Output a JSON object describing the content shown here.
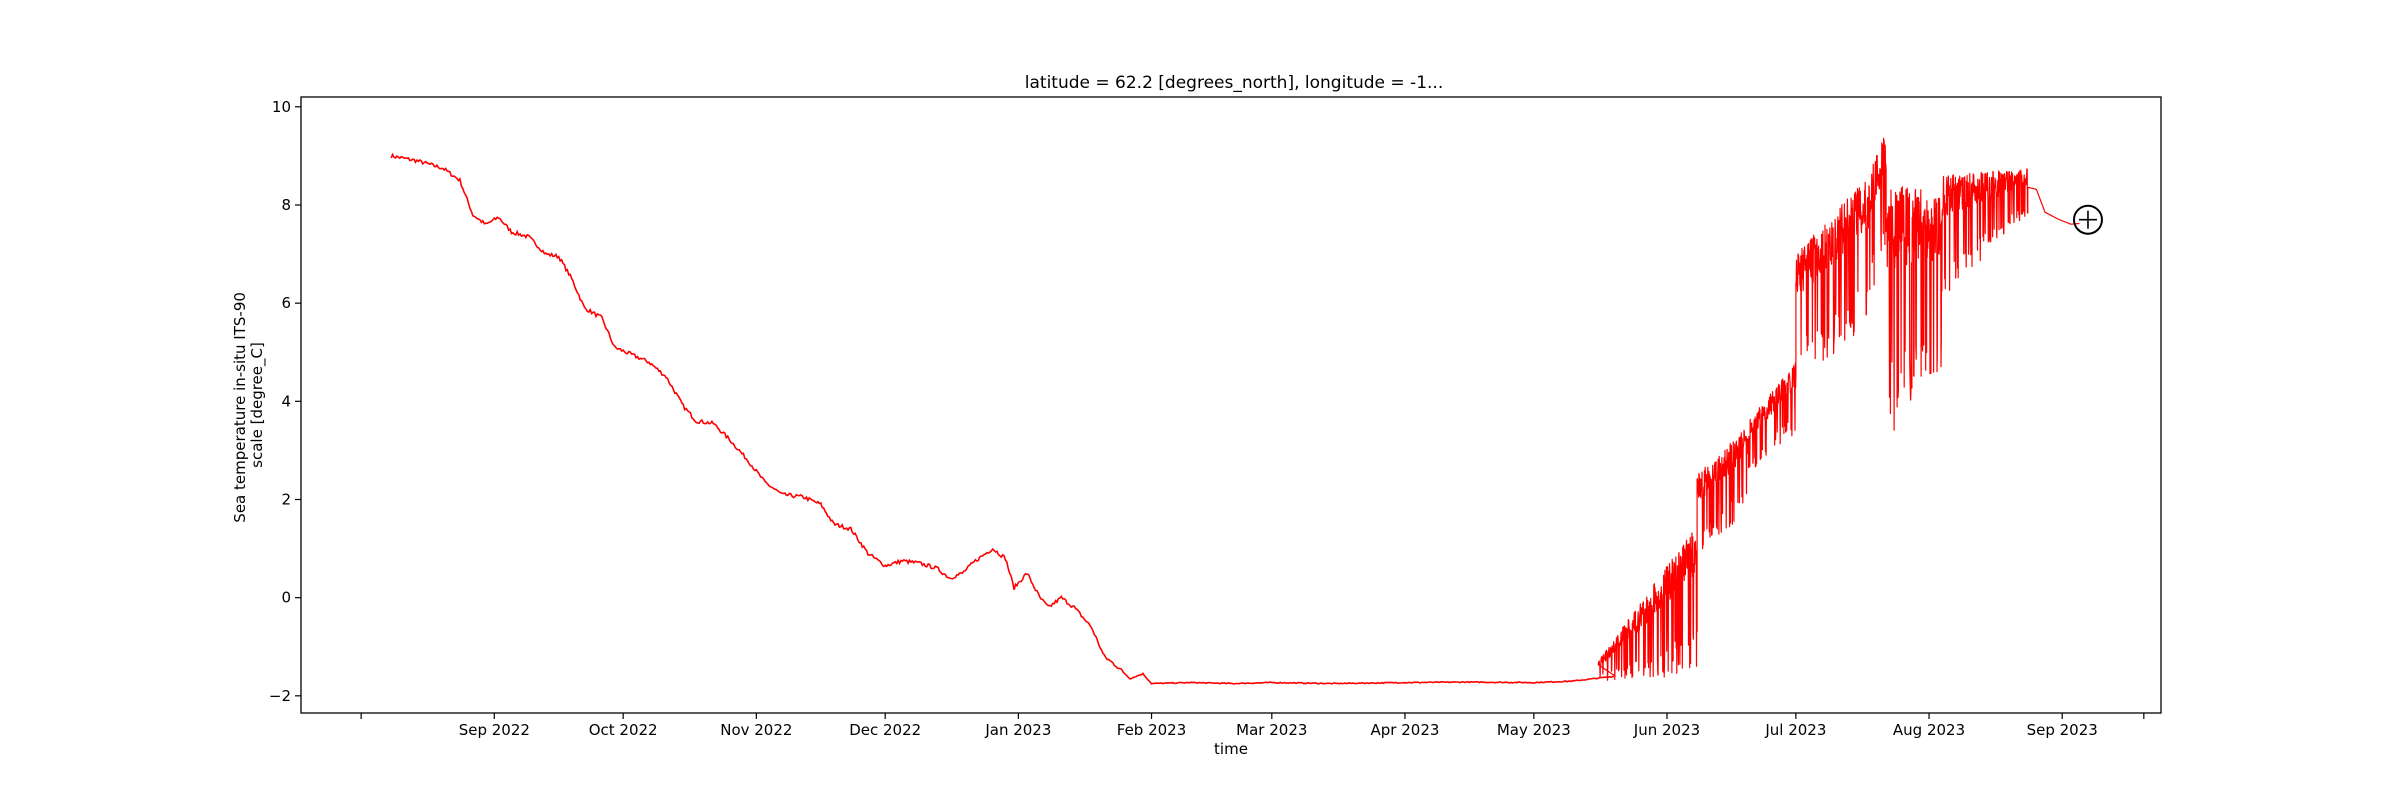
{
  "chart_data": {
    "type": "line",
    "title": "latitude = 62.2 [degrees_north], longitude = -1...",
    "xlabel": "time",
    "ylabel_lines": [
      "Sea temperature in-situ ITS-90",
      "scale [degree_C]"
    ],
    "xlim": [
      "2022-07-18",
      "2023-09-24"
    ],
    "ylim": [
      -2.35,
      10.2
    ],
    "x_ticks": [
      {
        "date": "2022-08-01",
        "label": ""
      },
      {
        "date": "2022-09-01",
        "label": "Sep 2022"
      },
      {
        "date": "2022-10-01",
        "label": "Oct 2022"
      },
      {
        "date": "2022-11-01",
        "label": "Nov 2022"
      },
      {
        "date": "2022-12-01",
        "label": "Dec 2022"
      },
      {
        "date": "2023-01-01",
        "label": "Jan 2023"
      },
      {
        "date": "2023-02-01",
        "label": "Feb 2023"
      },
      {
        "date": "2023-03-01",
        "label": "Mar 2023"
      },
      {
        "date": "2023-04-01",
        "label": "Apr 2023"
      },
      {
        "date": "2023-05-01",
        "label": "May 2023"
      },
      {
        "date": "2023-06-01",
        "label": "Jun 2023"
      },
      {
        "date": "2023-07-01",
        "label": "Jul 2023"
      },
      {
        "date": "2023-08-01",
        "label": "Aug 2023"
      },
      {
        "date": "2023-09-01",
        "label": "Sep 2023"
      },
      {
        "date": "2023-09-20",
        "label": ""
      }
    ],
    "y_ticks": [
      -2,
      0,
      2,
      4,
      6,
      8,
      10
    ],
    "series": [
      {
        "color": "#ff0000",
        "points": [
          [
            "2022-08-08",
            9.0
          ],
          [
            "2022-08-14",
            8.9
          ],
          [
            "2022-08-20",
            8.75
          ],
          [
            "2022-08-24",
            8.5
          ],
          [
            "2022-08-27",
            7.8
          ],
          [
            "2022-08-30",
            7.6
          ],
          [
            "2022-09-02",
            7.75
          ],
          [
            "2022-09-05",
            7.45
          ],
          [
            "2022-09-09",
            7.35
          ],
          [
            "2022-09-13",
            7.0
          ],
          [
            "2022-09-16",
            6.95
          ],
          [
            "2022-09-19",
            6.5
          ],
          [
            "2022-09-22",
            5.9
          ],
          [
            "2022-09-26",
            5.7
          ],
          [
            "2022-09-29",
            5.1
          ],
          [
            "2022-10-03",
            4.95
          ],
          [
            "2022-10-07",
            4.8
          ],
          [
            "2022-10-11",
            4.5
          ],
          [
            "2022-10-15",
            3.9
          ],
          [
            "2022-10-18",
            3.6
          ],
          [
            "2022-10-22",
            3.55
          ],
          [
            "2022-10-26",
            3.2
          ],
          [
            "2022-10-30",
            2.8
          ],
          [
            "2022-11-03",
            2.35
          ],
          [
            "2022-11-07",
            2.1
          ],
          [
            "2022-11-12",
            2.05
          ],
          [
            "2022-11-16",
            1.9
          ],
          [
            "2022-11-19",
            1.5
          ],
          [
            "2022-11-23",
            1.4
          ],
          [
            "2022-11-27",
            0.9
          ],
          [
            "2022-12-01",
            0.65
          ],
          [
            "2022-12-05",
            0.75
          ],
          [
            "2022-12-09",
            0.7
          ],
          [
            "2022-12-13",
            0.6
          ],
          [
            "2022-12-16",
            0.4
          ],
          [
            "2022-12-19",
            0.5
          ],
          [
            "2022-12-22",
            0.75
          ],
          [
            "2022-12-26",
            1.0
          ],
          [
            "2022-12-29",
            0.8
          ],
          [
            "2022-12-31",
            0.2
          ],
          [
            "2023-01-03",
            0.5
          ],
          [
            "2023-01-06",
            0.0
          ],
          [
            "2023-01-08",
            -0.2
          ],
          [
            "2023-01-11",
            0.0
          ],
          [
            "2023-01-14",
            -0.2
          ],
          [
            "2023-01-18",
            -0.6
          ],
          [
            "2023-01-21",
            -1.2
          ],
          [
            "2023-01-24",
            -1.4
          ],
          [
            "2023-01-27",
            -1.65
          ],
          [
            "2023-01-30",
            -1.55
          ],
          [
            "2023-02-01",
            -1.75
          ],
          [
            "2023-02-10",
            -1.73
          ],
          [
            "2023-02-20",
            -1.75
          ],
          [
            "2023-03-01",
            -1.73
          ],
          [
            "2023-03-15",
            -1.75
          ],
          [
            "2023-04-01",
            -1.73
          ],
          [
            "2023-04-15",
            -1.72
          ],
          [
            "2023-05-01",
            -1.73
          ],
          [
            "2023-05-10",
            -1.7
          ],
          [
            "2023-05-15",
            -1.65
          ],
          [
            "2023-05-20",
            -1.6
          ]
        ]
      }
    ],
    "noisy_segments": [
      {
        "from": "2023-05-16",
        "to": "2023-06-08",
        "upper": [
          -1.3,
          1.5
        ],
        "lower": [
          -1.7,
          -1.6
        ]
      },
      {
        "from": "2023-06-08",
        "to": "2023-06-20",
        "upper": [
          2.5,
          3.5
        ],
        "lower": [
          0.8,
          1.8
        ]
      },
      {
        "from": "2023-06-20",
        "to": "2023-07-01",
        "upper": [
          3.6,
          4.8
        ],
        "lower": [
          2.5,
          3.3
        ]
      },
      {
        "from": "2023-07-01",
        "to": "2023-07-18",
        "upper": [
          7.0,
          8.6
        ],
        "lower": [
          4.4,
          5.5
        ]
      },
      {
        "from": "2023-07-18",
        "to": "2023-07-22",
        "upper": [
          8.6,
          9.6
        ],
        "lower": [
          6.0,
          7.0
        ]
      },
      {
        "from": "2023-07-22",
        "to": "2023-08-04",
        "upper": [
          8.5,
          8.2
        ],
        "lower": [
          3.2,
          4.5
        ]
      },
      {
        "from": "2023-08-04",
        "to": "2023-08-24",
        "upper": [
          8.6,
          8.75
        ],
        "lower": [
          6.1,
          7.8
        ]
      }
    ],
    "tail_points": [
      [
        "2023-08-24",
        8.4
      ],
      [
        "2023-08-26",
        8.3
      ],
      [
        "2023-08-28",
        7.9
      ],
      [
        "2023-08-31",
        7.7
      ],
      [
        "2023-09-03",
        7.6
      ],
      [
        "2023-09-05",
        7.65
      ]
    ],
    "cursor": {
      "date": "2023-09-07",
      "value": 7.7
    }
  }
}
